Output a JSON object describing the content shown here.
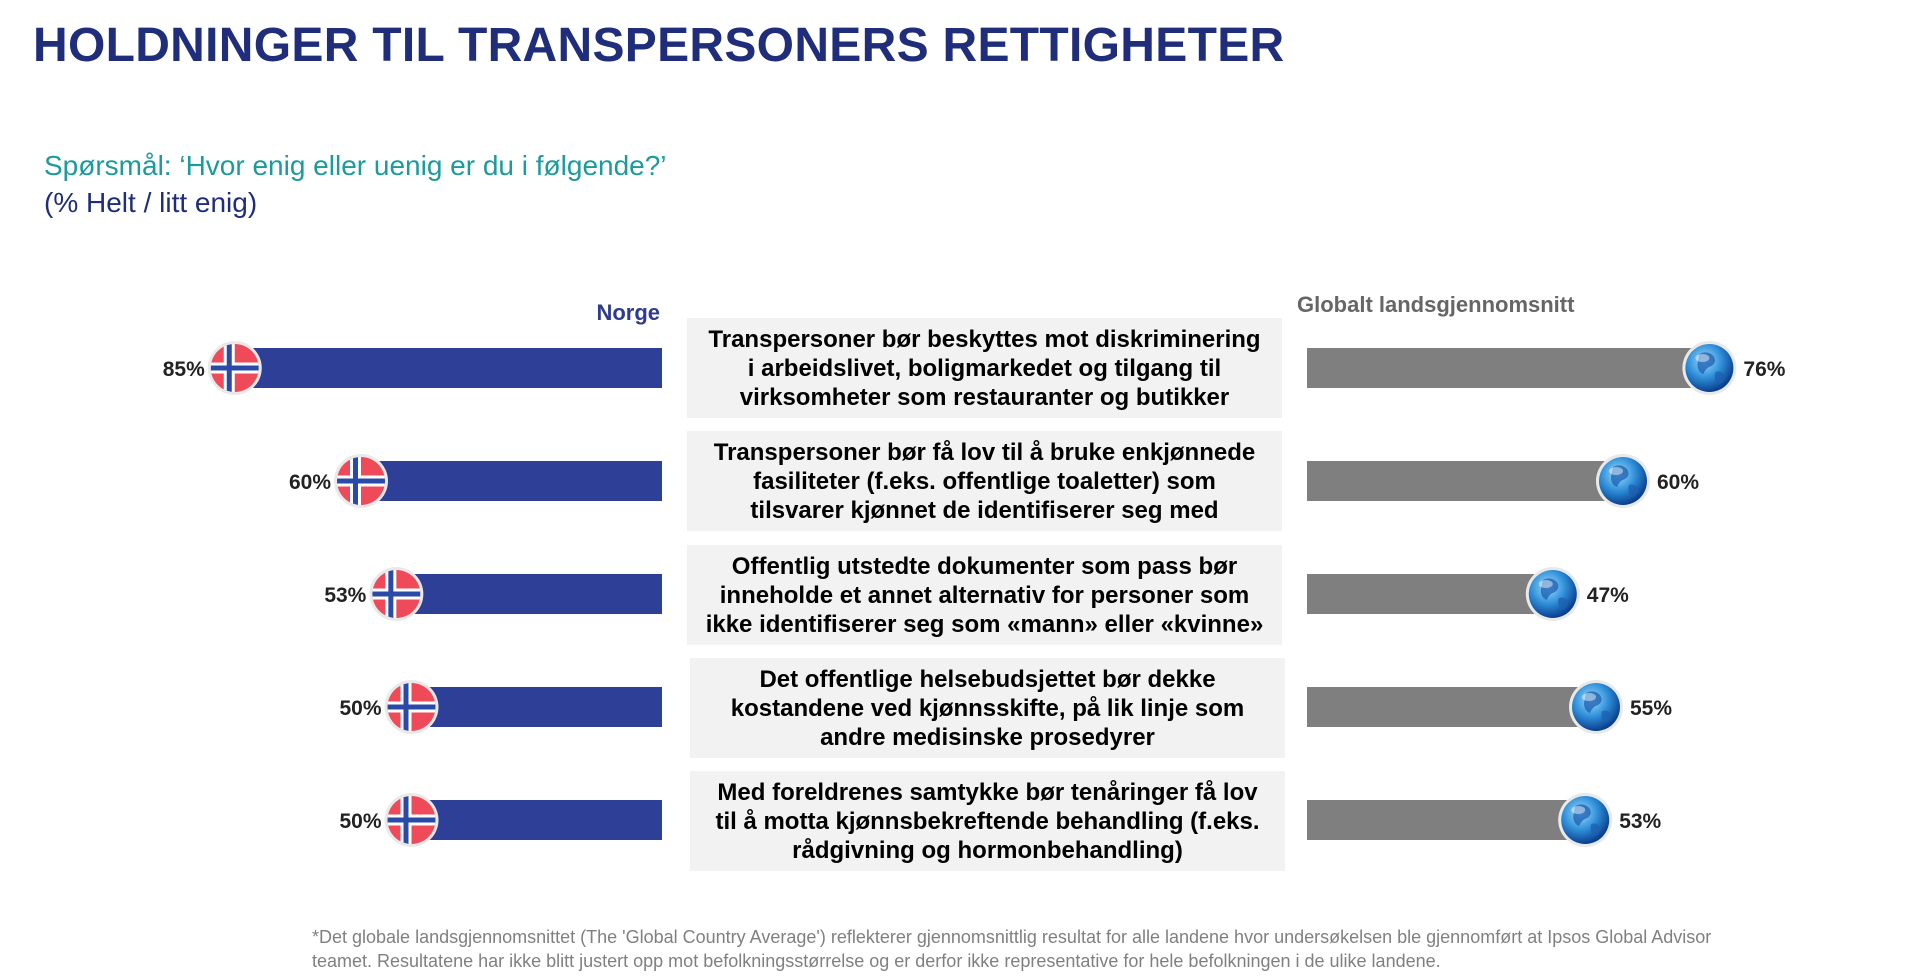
{
  "title": "HOLDNINGER TIL TRANSPERSONERS RETTIGHETER",
  "question": "Spørsmål: ‘Hvor enig eller uenig er du i følgende?’",
  "unit": "(% Helt / litt enig)",
  "colors": {
    "norge_bar": "#2e3f97",
    "global_bar": "#7f7f7f",
    "title": "#1f2d7b",
    "question": "#1b9b9b"
  },
  "icons": {
    "norge": "norway-flag-icon",
    "global": "globe-icon"
  },
  "chart_data": {
    "type": "bar",
    "orientation": "horizontal-butterfly",
    "xlim": [
      0,
      100
    ],
    "series": [
      {
        "name": "Norge",
        "values": [
          85,
          60,
          53,
          50,
          50
        ]
      },
      {
        "name": "Globalt landsgjennomsnitt",
        "values": [
          76,
          60,
          47,
          55,
          53
        ]
      }
    ],
    "categories": [
      "Transpersoner bør beskyttes mot diskriminering i arbeidslivet, boligmarkedet og tilgang til virksomheter som restauranter og butikker",
      "Transpersoner bør få lov til å bruke enkjønnede fasiliteter (f.eks. offentlige toaletter) som tilsvarer kjønnet de identifiserer seg med",
      "Offentlig utstedte dokumenter som pass bør inneholde et annet alternativ for personer som ikke identifiserer seg som «mann» eller «kvinne»",
      "Det offentlige helsebudsjettet bør dekke kostandene ved kjønnsskifte, på lik linje som andre medisinske prosedyrer",
      "Med foreldrenes samtykke bør tenåringer få lov til å motta kjønnsbekreftende behandling (f.eks. rådgivning og hormonbehandling)"
    ],
    "norge_labels": [
      "85%",
      "60%",
      "53%",
      "50%",
      "50%"
    ],
    "global_labels": [
      "76%",
      "60%",
      "47%",
      "55%",
      "53%"
    ]
  },
  "footnote": "*Det globale landsgjennomsnittet (The 'Global Country Average') reflekterer gjennomsnittlig resultat for alle landene hvor undersøkelsen ble gjennomført at Ipsos Global Advisor teamet. Resultatene har ikke blitt justert opp mot befolkningsstørrelse og er derfor ikke representative for hele befolkningen i de ulike landene."
}
